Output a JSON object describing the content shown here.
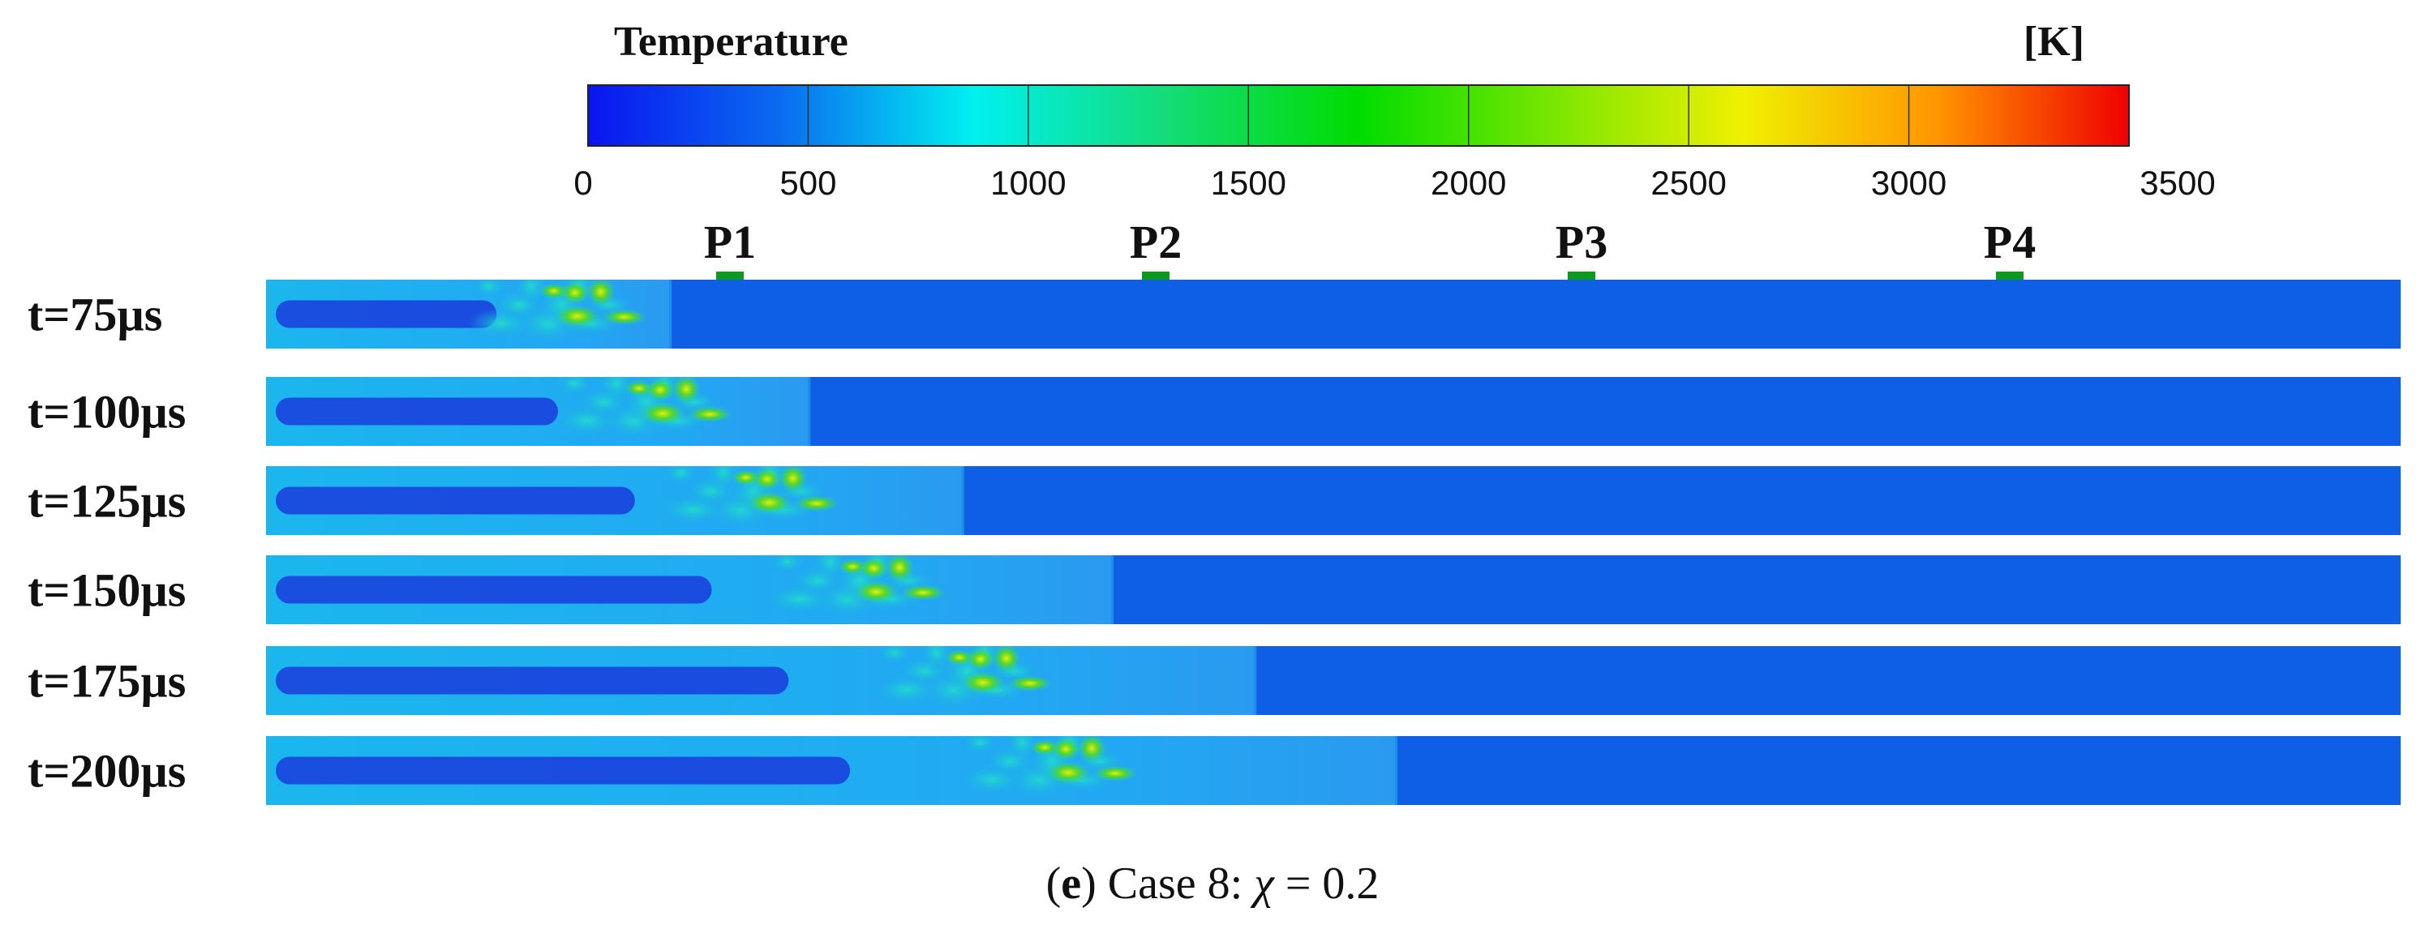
{
  "colorbar": {
    "title": "Temperature",
    "unit": "[K]",
    "min": 0,
    "max": 3500,
    "ticks": [
      "0",
      "500",
      "1000",
      "1500",
      "2000",
      "2500",
      "3000",
      "3500"
    ],
    "colors": [
      "#0a14f0",
      "#0a6cf0",
      "#00f0f0",
      "#14dc78",
      "#00dc00",
      "#78e600",
      "#f0f000",
      "#ff9600",
      "#f00000"
    ]
  },
  "probes": [
    {
      "label": "P1"
    },
    {
      "label": "P2"
    },
    {
      "label": "P3"
    },
    {
      "label": "P4"
    }
  ],
  "snapshots": [
    {
      "label": "t=75µs",
      "front_fraction": 0.19,
      "flame_fraction": 0.15
    },
    {
      "label": "t=100µs",
      "front_fraction": 0.255,
      "flame_fraction": 0.19
    },
    {
      "label": "t=125µs",
      "front_fraction": 0.327,
      "flame_fraction": 0.24
    },
    {
      "label": "t=150µs",
      "front_fraction": 0.397,
      "flame_fraction": 0.29
    },
    {
      "label": "t=175µs",
      "front_fraction": 0.464,
      "flame_fraction": 0.34
    },
    {
      "label": "t=200µs",
      "front_fraction": 0.53,
      "flame_fraction": 0.38
    }
  ],
  "caption": {
    "letter": "e",
    "text": " Case 8: ",
    "symbol": "χ",
    "value": " = 0.2"
  },
  "colors": {
    "cold_gas": "#0f5fe6",
    "probe": "#0b9a1c",
    "text": "#111111"
  }
}
